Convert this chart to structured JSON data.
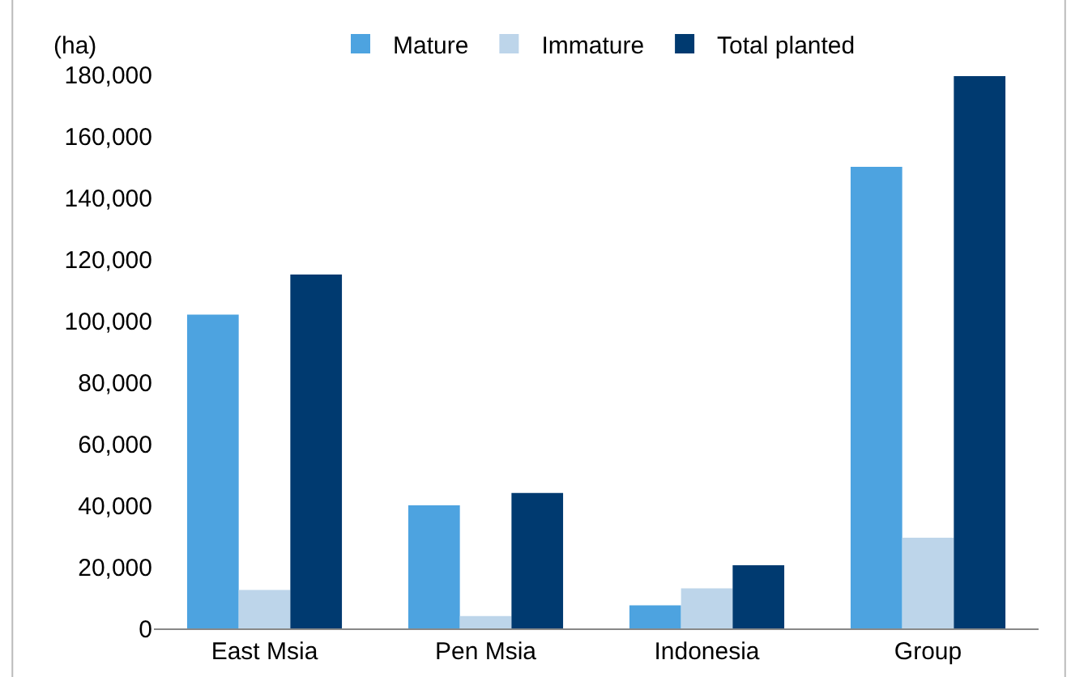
{
  "chart_data": {
    "type": "bar",
    "ylabel": "(ha)",
    "categories": [
      "East Msia",
      "Pen Msia",
      "Indonesia",
      "Group"
    ],
    "series": [
      {
        "name": "Mature",
        "color": "#4da3e0",
        "values": [
          102000,
          40000,
          7500,
          150000
        ]
      },
      {
        "name": "Immature",
        "color": "#bdd5ea",
        "values": [
          12500,
          4000,
          13000,
          29500
        ]
      },
      {
        "name": "Total planted",
        "color": "#003a70",
        "values": [
          115000,
          44000,
          20500,
          179500
        ]
      }
    ],
    "ylim": [
      0,
      180000
    ],
    "yticks": [
      {
        "value": 0,
        "label": "0"
      },
      {
        "value": 20000,
        "label": "20,000"
      },
      {
        "value": 40000,
        "label": "40,000"
      },
      {
        "value": 60000,
        "label": "60,000"
      },
      {
        "value": 80000,
        "label": "80,000"
      },
      {
        "value": 100000,
        "label": "100,000"
      },
      {
        "value": 120000,
        "label": "120,000"
      },
      {
        "value": 140000,
        "label": "140,000"
      },
      {
        "value": 160000,
        "label": "160,000"
      },
      {
        "value": 180000,
        "label": "180,000"
      }
    ],
    "grid": false,
    "legend": "top"
  }
}
